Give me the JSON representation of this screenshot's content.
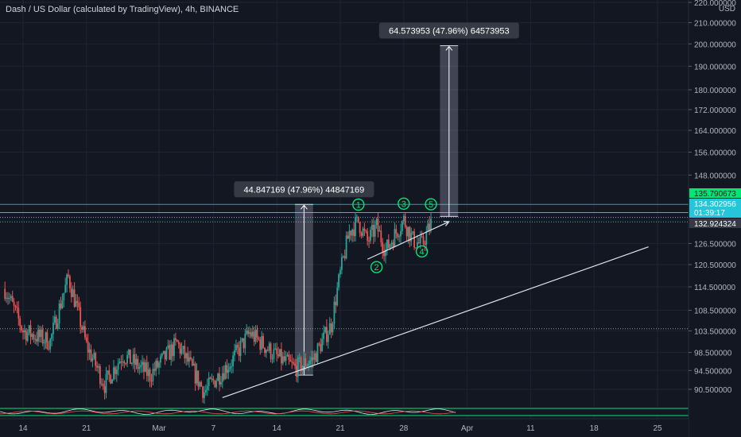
{
  "header": {
    "title": "Dash / US Dollar (calculated by TradingView), 4h, BINANCE"
  },
  "colors": {
    "background": "#131722",
    "grid": "#1f2433",
    "up": "#26a69a",
    "down": "#ef5350",
    "green_line": "#00e676",
    "cyan_line": "#26c6da",
    "trendline": "#e0e3eb",
    "projection_box": "rgba(180,190,210,0.28)",
    "label_bg": "#363a45"
  },
  "chart_data": {
    "type": "candlestick",
    "title": "Dash / US Dollar (calculated by TradingView), 4h, BINANCE",
    "y_axis": {
      "unit": "USD",
      "scale": "log",
      "ticks": [
        "220.000000",
        "210.000000",
        "200.000000",
        "190.000000",
        "180.000000",
        "172.000000",
        "164.000000",
        "156.000000",
        "148.000000",
        "135.790673",
        "134.302956",
        "01:39:17",
        "132.924324",
        "126.500000",
        "120.500000",
        "114.500000",
        "108.500000",
        "103.500000",
        "98.500000",
        "94.500000",
        "90.500000"
      ],
      "tick_values": [
        220,
        210,
        200,
        190,
        180,
        172,
        164,
        156,
        148,
        126.5,
        120.5,
        114.5,
        108.5,
        103.5,
        98.5,
        94.5,
        90.5
      ],
      "range": [
        87.5,
        222
      ]
    },
    "x_axis": {
      "ticks": [
        "14",
        "21",
        "Mar",
        "7",
        "14",
        "21",
        "28",
        "Apr",
        "11",
        "18",
        "25"
      ],
      "dates": [
        "2021-02-14",
        "2021-02-21",
        "2021-03-01",
        "2021-03-07",
        "2021-03-14",
        "2021-03-21",
        "2021-03-28",
        "2021-04-04",
        "2021-04-11",
        "2021-04-18",
        "2021-04-25"
      ]
    },
    "price_labels": [
      {
        "label": "135.790673",
        "value": 135.79,
        "color": "#00e676",
        "text_color": "#131722"
      },
      {
        "label": "134.302956",
        "sublabel": "01:39:17",
        "value": 134.3,
        "color": "#26c6da",
        "text_color": "#ffffff"
      },
      {
        "label": "132.924324",
        "value": 132.92,
        "color": "#363a45",
        "text_color": "#ffffff"
      }
    ],
    "candles_summary": {
      "start": "2021-02-12",
      "end": "2021-03-31",
      "anchors": [
        [
          "2021-02-12",
          114.0
        ],
        [
          "2021-02-14",
          103.5
        ],
        [
          "2021-02-17",
          101.0
        ],
        [
          "2021-02-19",
          117.0
        ],
        [
          "2021-02-21",
          100.0
        ],
        [
          "2021-02-23",
          91.5
        ],
        [
          "2021-02-25",
          98.0
        ],
        [
          "2021-02-28",
          93.5
        ],
        [
          "2021-03-03",
          100.5
        ],
        [
          "2021-03-06",
          90.0
        ],
        [
          "2021-03-09",
          96.5
        ],
        [
          "2021-03-11",
          103.0
        ],
        [
          "2021-03-14",
          97.5
        ],
        [
          "2021-03-16",
          95.0
        ],
        [
          "2021-03-18",
          97.0
        ],
        [
          "2021-03-20",
          105.0
        ],
        [
          "2021-03-21",
          118.0
        ],
        [
          "2021-03-22",
          130.0
        ],
        [
          "2021-03-23",
          133.0
        ],
        [
          "2021-03-24",
          127.0
        ],
        [
          "2021-03-25",
          131.5
        ],
        [
          "2021-03-26",
          124.5
        ],
        [
          "2021-03-27",
          129.0
        ],
        [
          "2021-03-28",
          133.5
        ],
        [
          "2021-03-29",
          127.5
        ],
        [
          "2021-03-30",
          126.0
        ],
        [
          "2021-03-31",
          132.5
        ]
      ]
    },
    "projections": [
      {
        "label": "44.847169 (47.96%) 44847169",
        "x_start": "2021-03-16",
        "x_end": "2021-03-18",
        "y_low": 93.5,
        "y_high": 138.35
      },
      {
        "label": "64.573953 (47.96%) 64573953",
        "x_start": "2021-04-01",
        "x_end": "2021-04-03",
        "y_low": 134.6,
        "y_high": 199.2
      }
    ],
    "trendlines": [
      {
        "from": [
          "2021-03-08",
          88.8
        ],
        "to": [
          "2021-04-24",
          125.5
        ]
      },
      {
        "from": [
          "2021-03-24",
          122.0
        ],
        "to": [
          "2021-04-02",
          133.0
        ],
        "arrow": true
      }
    ],
    "horizontal_lines": [
      {
        "value": 135.79,
        "style": "solid",
        "color": "#00e676"
      },
      {
        "value": 134.3,
        "style": "dotted",
        "color": "#26c6da"
      },
      {
        "value": 132.92,
        "style": "dotted",
        "color": "#9598a1"
      },
      {
        "value": 138.35,
        "style": "solid",
        "color": "#26a69a"
      },
      {
        "value": 104.0,
        "style": "dotted",
        "color": "#9598a1"
      }
    ],
    "wave_labels": [
      {
        "label": "1",
        "x": "2021-03-23",
        "y": 138.3
      },
      {
        "label": "2",
        "x": "2021-03-25",
        "y": 119.8
      },
      {
        "label": "3",
        "x": "2021-03-28",
        "y": 138.6
      },
      {
        "label": "4",
        "x": "2021-03-30",
        "y": 124.2
      },
      {
        "label": "5",
        "x": "2021-03-31",
        "y": 138.4
      }
    ],
    "grid": true,
    "legend": "none"
  }
}
